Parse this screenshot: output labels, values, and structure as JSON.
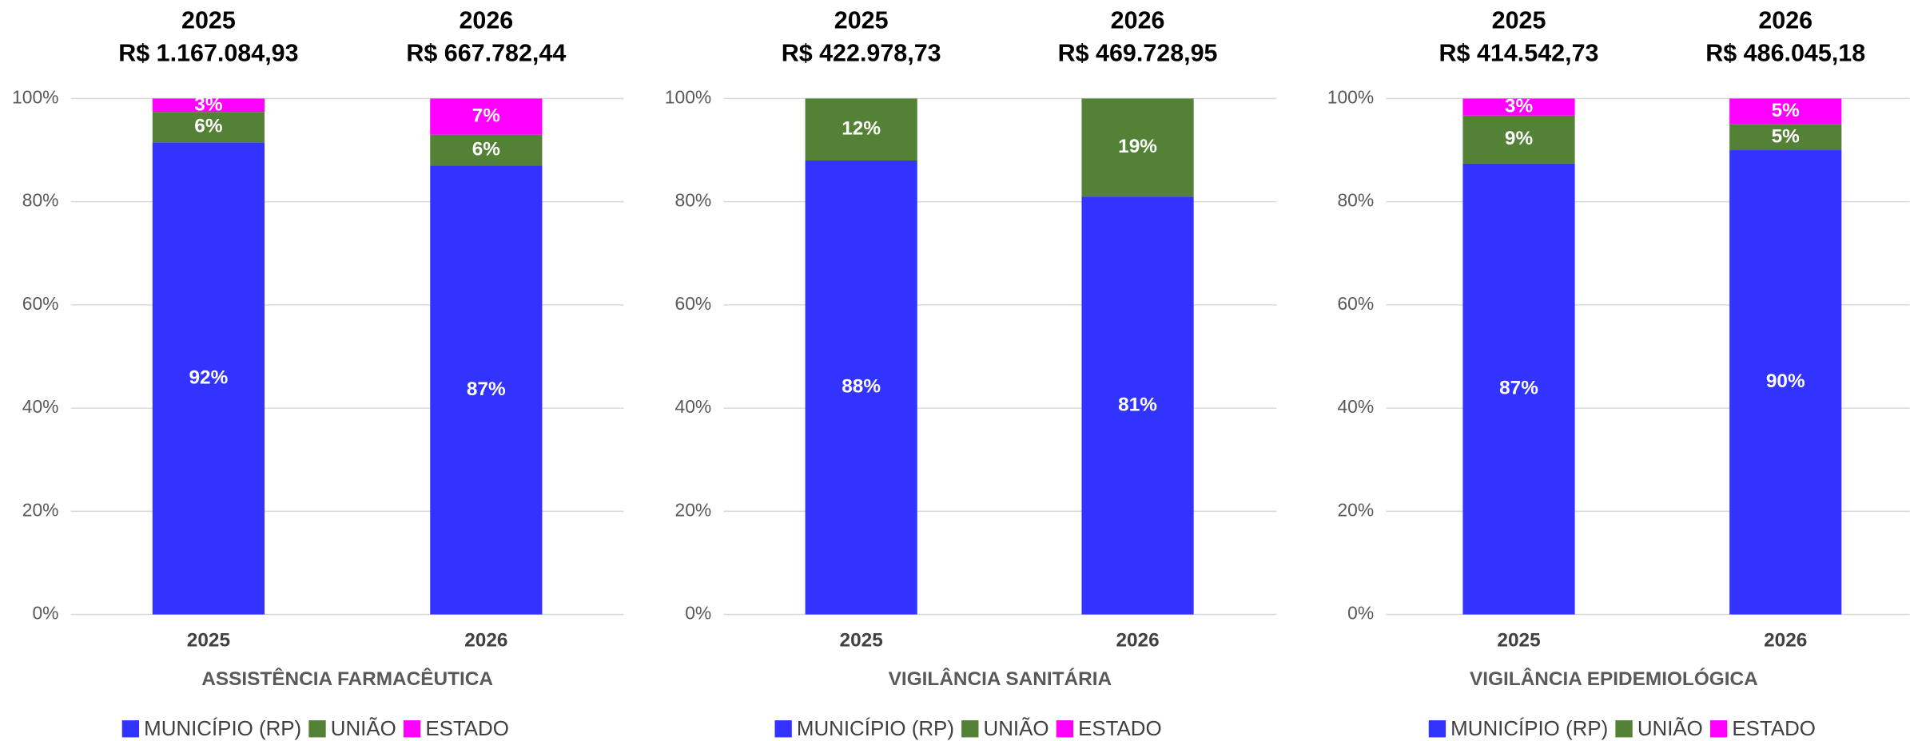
{
  "chart_data": [
    {
      "type": "bar",
      "stacked": true,
      "title": "ASSISTÊNCIA FARMACÊUTICA",
      "categories": [
        "2025",
        "2026"
      ],
      "headers": [
        {
          "year": "2025",
          "amount": "R$ 1.167.084,93"
        },
        {
          "year": "2026",
          "amount": "R$ 667.782,44"
        }
      ],
      "series": [
        {
          "name": "MUNICÍPIO (RP)",
          "color": "#3333ff",
          "values": [
            91.5,
            87
          ],
          "value_labels": [
            "92%",
            "87%"
          ]
        },
        {
          "name": "UNIÃO",
          "color": "#538135",
          "values": [
            5.9,
            6
          ],
          "value_labels": [
            "6%",
            "6%"
          ]
        },
        {
          "name": "ESTADO",
          "color": "#ff00ff",
          "values": [
            2.6,
            7
          ],
          "value_labels": [
            "3%",
            "7%"
          ]
        }
      ],
      "ylim": [
        0,
        100
      ],
      "yticks": [
        {
          "value": 0,
          "label": "0%"
        },
        {
          "value": 20,
          "label": "20%"
        },
        {
          "value": 40,
          "label": "40%"
        },
        {
          "value": 60,
          "label": "60%"
        },
        {
          "value": 80,
          "label": "80%"
        },
        {
          "value": 100,
          "label": "100%"
        }
      ],
      "grid": true,
      "legend": "bottom"
    },
    {
      "type": "bar",
      "stacked": true,
      "title": "VIGILÂNCIA SANITÁRIA",
      "categories": [
        "2025",
        "2026"
      ],
      "headers": [
        {
          "year": "2025",
          "amount": "R$ 422.978,73"
        },
        {
          "year": "2026",
          "amount": "R$ 469.728,95"
        }
      ],
      "series": [
        {
          "name": "MUNICÍPIO (RP)",
          "color": "#3333ff",
          "values": [
            88,
            81
          ],
          "value_labels": [
            "88%",
            "81%"
          ]
        },
        {
          "name": "UNIÃO",
          "color": "#538135",
          "values": [
            12,
            19
          ],
          "value_labels": [
            "12%",
            "19%"
          ]
        },
        {
          "name": "ESTADO",
          "color": "#ff00ff",
          "values": [
            0,
            0
          ],
          "value_labels": [
            null,
            null
          ]
        }
      ],
      "ylim": [
        0,
        100
      ],
      "yticks": [
        {
          "value": 0,
          "label": "0%"
        },
        {
          "value": 20,
          "label": "20%"
        },
        {
          "value": 40,
          "label": "40%"
        },
        {
          "value": 60,
          "label": "60%"
        },
        {
          "value": 80,
          "label": "80%"
        },
        {
          "value": 100,
          "label": "100%"
        }
      ],
      "grid": true,
      "legend": "bottom"
    },
    {
      "type": "bar",
      "stacked": true,
      "title": "VIGILÂNCIA EPIDEMIOLÓGICA",
      "categories": [
        "2025",
        "2026"
      ],
      "headers": [
        {
          "year": "2025",
          "amount": "R$ 414.542,73"
        },
        {
          "year": "2026",
          "amount": "R$ 486.045,18"
        }
      ],
      "series": [
        {
          "name": "MUNICÍPIO (RP)",
          "color": "#3333ff",
          "values": [
            87.4,
            90
          ],
          "value_labels": [
            "87%",
            "90%"
          ]
        },
        {
          "name": "UNIÃO",
          "color": "#538135",
          "values": [
            9.3,
            5
          ],
          "value_labels": [
            "9%",
            "5%"
          ]
        },
        {
          "name": "ESTADO",
          "color": "#ff00ff",
          "values": [
            3.3,
            5
          ],
          "value_labels": [
            "3%",
            "5%"
          ]
        }
      ],
      "ylim": [
        0,
        100
      ],
      "yticks": [
        {
          "value": 0,
          "label": "0%"
        },
        {
          "value": 20,
          "label": "20%"
        },
        {
          "value": 40,
          "label": "40%"
        },
        {
          "value": 60,
          "label": "60%"
        },
        {
          "value": 80,
          "label": "80%"
        },
        {
          "value": 100,
          "label": "100%"
        }
      ],
      "grid": true,
      "legend": "bottom"
    }
  ]
}
